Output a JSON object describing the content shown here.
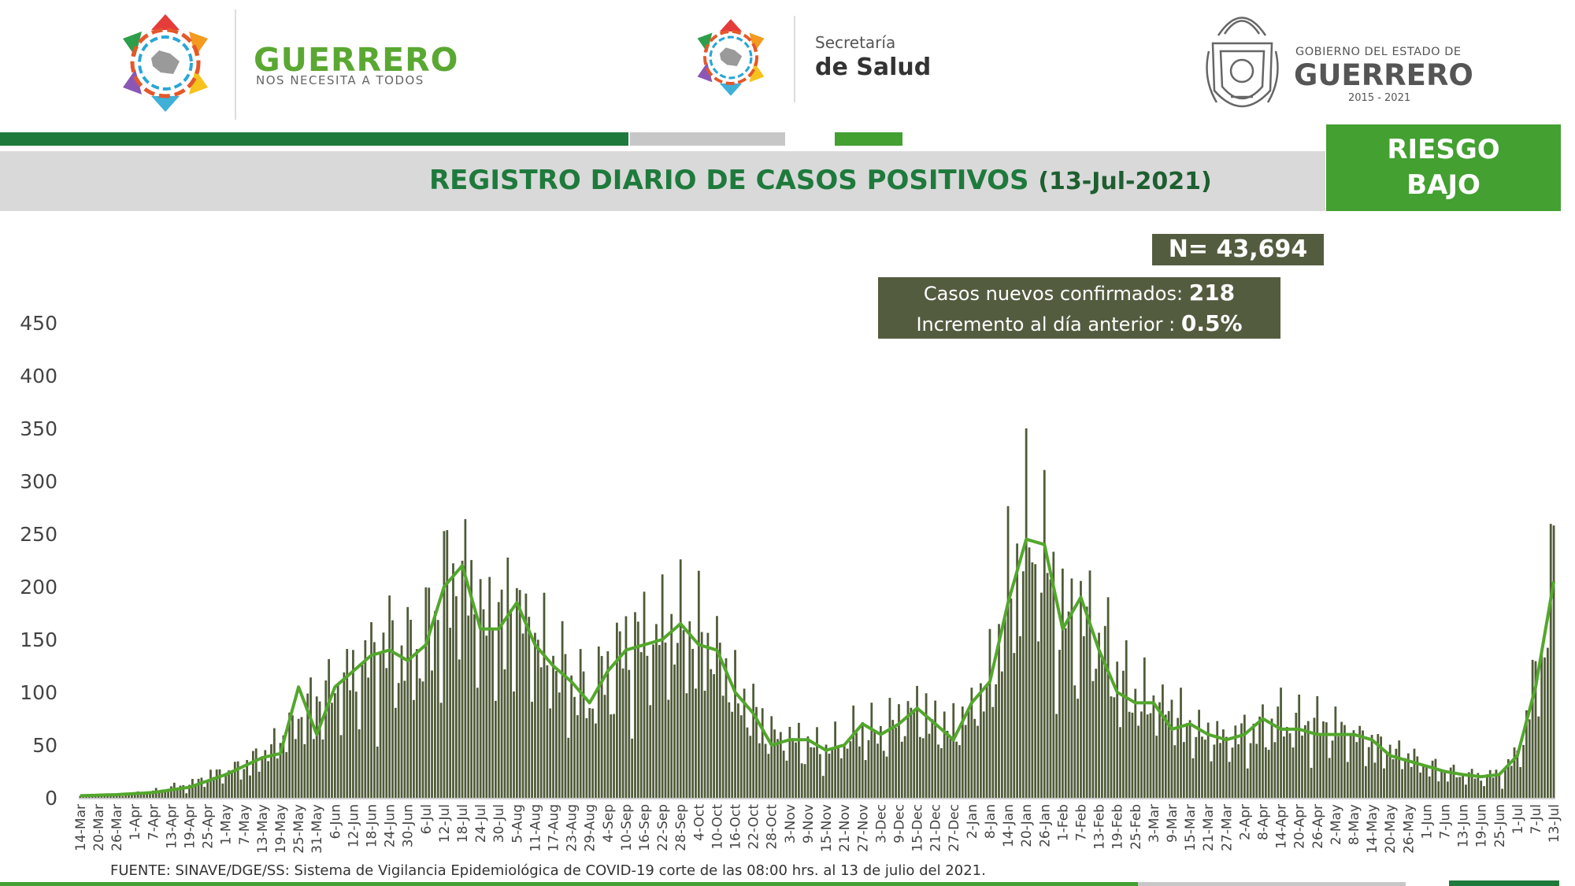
{
  "header": {
    "brand_name": "GUERRERO",
    "brand_tagline": "NOS NECESITA A TODOS",
    "salud_line1": "Secretaría",
    "salud_line2": "de Salud",
    "gob_line1": "GOBIERNO DEL ESTADO DE",
    "gob_line2": "GUERRERO",
    "gob_years": "2015 - 2021"
  },
  "title": {
    "main": "REGISTRO DIARIO DE CASOS POSITIVOS",
    "date": "(13-Jul-2021)"
  },
  "risk": {
    "line1": "RIESGO",
    "line2": "BAJO"
  },
  "stats": {
    "total": "N= 43,694",
    "new_label": "Casos nuevos confirmados:",
    "new_value": "218",
    "increase_label": "Incremento al día anterior :",
    "increase_value": "0.5%"
  },
  "source": "FUENTE: SINAVE/DGE/SS: Sistema de Vigilancia Epidemiológica de COVID-19 corte de las 08:00 hrs. al 13 de julio del 2021.",
  "colors": {
    "bar": "#4f5b38",
    "line": "#53a72c",
    "title": "#1e7a3c",
    "risk": "#43a031",
    "box": "#545c40"
  },
  "chart_data": {
    "type": "bar",
    "start_date": "2020-03-14",
    "end_date": "2021-07-13",
    "ylim": [
      0,
      450
    ],
    "yticks": [
      0,
      50,
      100,
      150,
      200,
      250,
      300,
      350,
      400,
      450
    ],
    "xticks": [
      "14-Mar",
      "20-Mar",
      "26-Mar",
      "1-Apr",
      "7-Apr",
      "13-Apr",
      "19-Apr",
      "25-Apr",
      "1-May",
      "7-May",
      "13-May",
      "19-May",
      "25-May",
      "31-May",
      "6-Jun",
      "12-Jun",
      "18-Jun",
      "24-Jun",
      "30-Jun",
      "6-Jul",
      "12-Jul",
      "18-Jul",
      "24-Jul",
      "30-Jul",
      "5-Aug",
      "11-Aug",
      "17-Aug",
      "23-Aug",
      "29-Aug",
      "4-Sep",
      "10-Sep",
      "16-Sep",
      "22-Sep",
      "28-Sep",
      "4-Oct",
      "10-Oct",
      "16-Oct",
      "22-Oct",
      "28-Oct",
      "3-Nov",
      "9-Nov",
      "15-Nov",
      "21-Nov",
      "27-Nov",
      "3-Dec",
      "9-Dec",
      "15-Dec",
      "21-Dec",
      "27-Dec",
      "2-Jan",
      "8-Jan",
      "14-Jan",
      "20-Jan",
      "26-Jan",
      "1-Feb",
      "7-Feb",
      "13-Feb",
      "19-Feb",
      "25-Feb",
      "3-Mar",
      "9-Mar",
      "15-Mar",
      "21-Mar",
      "27-Mar",
      "2-Apr",
      "8-Apr",
      "14-Apr",
      "20-Apr",
      "26-Apr",
      "2-May",
      "8-May",
      "14-May",
      "20-May",
      "26-May",
      "1-Jun",
      "7-Jun",
      "13-Jun",
      "19-Jun",
      "25-Jun",
      "1-Jul",
      "7-Jul",
      "13-Jul"
    ],
    "anchors": [
      [
        0,
        2
      ],
      [
        6,
        2
      ],
      [
        12,
        3
      ],
      [
        18,
        4
      ],
      [
        24,
        6
      ],
      [
        30,
        10
      ],
      [
        36,
        12
      ],
      [
        42,
        20
      ],
      [
        48,
        25
      ],
      [
        54,
        30
      ],
      [
        60,
        40
      ],
      [
        66,
        55
      ],
      [
        72,
        75
      ],
      [
        78,
        90
      ],
      [
        84,
        105
      ],
      [
        90,
        115
      ],
      [
        96,
        130
      ],
      [
        102,
        145
      ],
      [
        108,
        135
      ],
      [
        114,
        150
      ],
      [
        120,
        195
      ],
      [
        126,
        215
      ],
      [
        132,
        175
      ],
      [
        138,
        165
      ],
      [
        144,
        185
      ],
      [
        150,
        150
      ],
      [
        156,
        130
      ],
      [
        162,
        110
      ],
      [
        168,
        95
      ],
      [
        174,
        120
      ],
      [
        180,
        140
      ],
      [
        186,
        150
      ],
      [
        192,
        155
      ],
      [
        198,
        160
      ],
      [
        204,
        150
      ],
      [
        210,
        140
      ],
      [
        216,
        100
      ],
      [
        222,
        80
      ],
      [
        228,
        60
      ],
      [
        234,
        55
      ],
      [
        240,
        50
      ],
      [
        246,
        45
      ],
      [
        252,
        55
      ],
      [
        258,
        65
      ],
      [
        264,
        60
      ],
      [
        270,
        75
      ],
      [
        276,
        85
      ],
      [
        282,
        70
      ],
      [
        288,
        65
      ],
      [
        294,
        85
      ],
      [
        300,
        110
      ],
      [
        306,
        190
      ],
      [
        312,
        245
      ],
      [
        318,
        225
      ],
      [
        324,
        165
      ],
      [
        330,
        165
      ],
      [
        336,
        160
      ],
      [
        342,
        115
      ],
      [
        348,
        95
      ],
      [
        354,
        90
      ],
      [
        360,
        85
      ],
      [
        366,
        65
      ],
      [
        372,
        60
      ],
      [
        378,
        55
      ],
      [
        384,
        60
      ],
      [
        390,
        65
      ],
      [
        396,
        75
      ],
      [
        402,
        70
      ],
      [
        408,
        70
      ],
      [
        414,
        65
      ],
      [
        420,
        60
      ],
      [
        426,
        50
      ],
      [
        432,
        45
      ],
      [
        438,
        40
      ],
      [
        444,
        30
      ],
      [
        450,
        25
      ],
      [
        456,
        22
      ],
      [
        462,
        20
      ],
      [
        468,
        22
      ],
      [
        474,
        40
      ],
      [
        480,
        110
      ],
      [
        486,
        210
      ]
    ],
    "smooth_anchors": [
      [
        0,
        2
      ],
      [
        12,
        3
      ],
      [
        24,
        5
      ],
      [
        36,
        10
      ],
      [
        48,
        22
      ],
      [
        60,
        38
      ],
      [
        66,
        42
      ],
      [
        72,
        105
      ],
      [
        78,
        60
      ],
      [
        84,
        105
      ],
      [
        90,
        120
      ],
      [
        96,
        135
      ],
      [
        102,
        140
      ],
      [
        108,
        130
      ],
      [
        114,
        145
      ],
      [
        120,
        200
      ],
      [
        126,
        220
      ],
      [
        132,
        160
      ],
      [
        138,
        160
      ],
      [
        144,
        185
      ],
      [
        150,
        145
      ],
      [
        156,
        125
      ],
      [
        162,
        110
      ],
      [
        168,
        90
      ],
      [
        174,
        120
      ],
      [
        180,
        140
      ],
      [
        186,
        145
      ],
      [
        192,
        150
      ],
      [
        198,
        165
      ],
      [
        204,
        145
      ],
      [
        210,
        140
      ],
      [
        216,
        100
      ],
      [
        222,
        80
      ],
      [
        228,
        50
      ],
      [
        234,
        55
      ],
      [
        240,
        55
      ],
      [
        246,
        45
      ],
      [
        252,
        50
      ],
      [
        258,
        70
      ],
      [
        264,
        60
      ],
      [
        270,
        70
      ],
      [
        276,
        85
      ],
      [
        282,
        70
      ],
      [
        288,
        55
      ],
      [
        294,
        90
      ],
      [
        300,
        110
      ],
      [
        306,
        185
      ],
      [
        312,
        245
      ],
      [
        318,
        240
      ],
      [
        324,
        160
      ],
      [
        330,
        190
      ],
      [
        336,
        140
      ],
      [
        342,
        100
      ],
      [
        348,
        90
      ],
      [
        354,
        90
      ],
      [
        360,
        65
      ],
      [
        366,
        70
      ],
      [
        372,
        60
      ],
      [
        378,
        55
      ],
      [
        384,
        60
      ],
      [
        390,
        75
      ],
      [
        396,
        65
      ],
      [
        402,
        65
      ],
      [
        408,
        60
      ],
      [
        414,
        60
      ],
      [
        420,
        60
      ],
      [
        426,
        55
      ],
      [
        432,
        40
      ],
      [
        438,
        35
      ],
      [
        444,
        30
      ],
      [
        450,
        25
      ],
      [
        456,
        22
      ],
      [
        462,
        20
      ],
      [
        468,
        22
      ],
      [
        474,
        40
      ],
      [
        480,
        105
      ],
      [
        486,
        205
      ]
    ]
  }
}
